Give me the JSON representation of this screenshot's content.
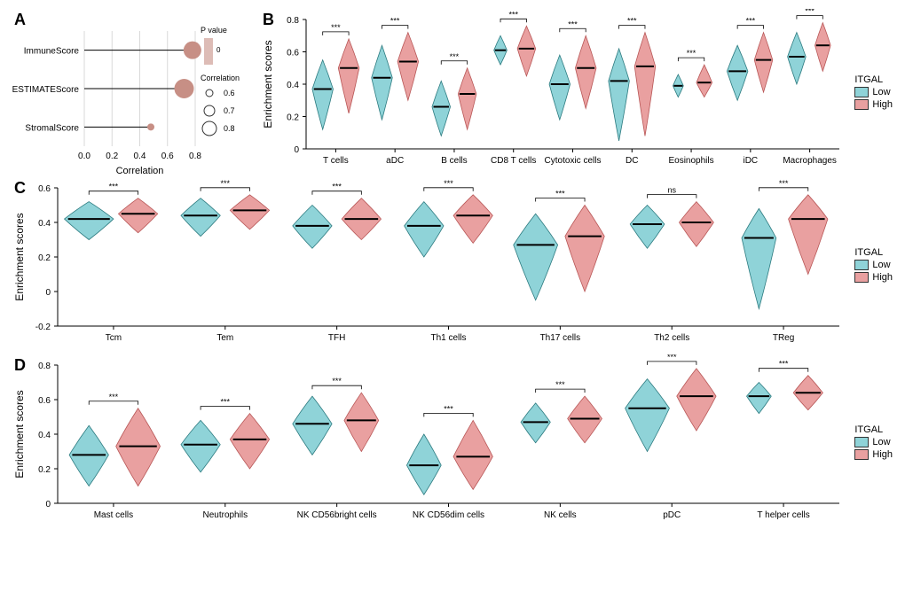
{
  "colors": {
    "low": "#8fd3d8",
    "high": "#e9a0a0",
    "low_stroke": "#2b7a7f",
    "high_stroke": "#b85656",
    "lollipop": "#c78f85",
    "grid": "#d9d9d9",
    "axis": "#000000",
    "bg": "#ffffff"
  },
  "legend": {
    "title": "ITGAL",
    "low": "Low",
    "high": "High"
  },
  "panelA": {
    "label": "A",
    "xlabel": "Correlation",
    "xlim": [
      0.0,
      0.8
    ],
    "xticks": [
      0.0,
      0.2,
      0.4,
      0.6,
      0.8
    ],
    "rows": [
      {
        "name": "ImmuneScore",
        "corr": 0.78,
        "size": 10
      },
      {
        "name": "ESTIMATEScore",
        "corr": 0.72,
        "size": 11
      },
      {
        "name": "StromalScore",
        "corr": 0.48,
        "size": 4
      }
    ],
    "legend_p": "P value",
    "legend_corr": "Correlation",
    "legend_circles": [
      {
        "label": "0.6",
        "r": 4
      },
      {
        "label": "0.7",
        "r": 6
      },
      {
        "label": "0.8",
        "r": 8
      }
    ]
  },
  "panelB": {
    "label": "B",
    "ylabel": "Enrichment scores",
    "ylim": [
      0.0,
      0.8
    ],
    "yticks": [
      0.0,
      0.2,
      0.4,
      0.6,
      0.8
    ],
    "cells": [
      {
        "name": "T cells",
        "low": {
          "m": 0.37,
          "lo": 0.12,
          "hi": 0.55,
          "w": 0.08
        },
        "high": {
          "m": 0.5,
          "lo": 0.22,
          "hi": 0.68,
          "w": 0.08
        },
        "sig": "***"
      },
      {
        "name": "aDC",
        "low": {
          "m": 0.44,
          "lo": 0.18,
          "hi": 0.64,
          "w": 0.08
        },
        "high": {
          "m": 0.54,
          "lo": 0.3,
          "hi": 0.72,
          "w": 0.08
        },
        "sig": "***"
      },
      {
        "name": "B cells",
        "low": {
          "m": 0.26,
          "lo": 0.08,
          "hi": 0.42,
          "w": 0.07
        },
        "high": {
          "m": 0.34,
          "lo": 0.12,
          "hi": 0.5,
          "w": 0.07
        },
        "sig": "***"
      },
      {
        "name": "CD8 T cells",
        "low": {
          "m": 0.61,
          "lo": 0.52,
          "hi": 0.7,
          "w": 0.05
        },
        "high": {
          "m": 0.62,
          "lo": 0.45,
          "hi": 0.76,
          "w": 0.07
        },
        "sig": "***"
      },
      {
        "name": "Cytotoxic cells",
        "low": {
          "m": 0.4,
          "lo": 0.18,
          "hi": 0.58,
          "w": 0.08
        },
        "high": {
          "m": 0.5,
          "lo": 0.25,
          "hi": 0.7,
          "w": 0.08
        },
        "sig": "***"
      },
      {
        "name": "DC",
        "low": {
          "m": 0.42,
          "lo": 0.05,
          "hi": 0.62,
          "w": 0.08
        },
        "high": {
          "m": 0.51,
          "lo": 0.08,
          "hi": 0.72,
          "w": 0.08
        },
        "sig": "***"
      },
      {
        "name": "Eosinophils",
        "low": {
          "m": 0.39,
          "lo": 0.32,
          "hi": 0.46,
          "w": 0.04
        },
        "high": {
          "m": 0.41,
          "lo": 0.32,
          "hi": 0.52,
          "w": 0.06
        },
        "sig": "***"
      },
      {
        "name": "iDC",
        "low": {
          "m": 0.48,
          "lo": 0.3,
          "hi": 0.64,
          "w": 0.08
        },
        "high": {
          "m": 0.55,
          "lo": 0.35,
          "hi": 0.72,
          "w": 0.07
        },
        "sig": "***"
      },
      {
        "name": "Macrophages",
        "low": {
          "m": 0.57,
          "lo": 0.4,
          "hi": 0.72,
          "w": 0.07
        },
        "high": {
          "m": 0.64,
          "lo": 0.48,
          "hi": 0.78,
          "w": 0.06
        },
        "sig": "***"
      }
    ]
  },
  "panelC": {
    "label": "C",
    "ylabel": "Enrichment scores",
    "ylim": [
      -0.2,
      0.6
    ],
    "yticks": [
      -0.2,
      0.0,
      0.2,
      0.4,
      0.6
    ],
    "cells": [
      {
        "name": "Tcm",
        "low": {
          "m": 0.42,
          "lo": 0.3,
          "hi": 0.52,
          "w": 0.1
        },
        "high": {
          "m": 0.45,
          "lo": 0.34,
          "hi": 0.54,
          "w": 0.08
        },
        "sig": "***"
      },
      {
        "name": "Tem",
        "low": {
          "m": 0.44,
          "lo": 0.32,
          "hi": 0.54,
          "w": 0.08
        },
        "high": {
          "m": 0.47,
          "lo": 0.36,
          "hi": 0.56,
          "w": 0.08
        },
        "sig": "***"
      },
      {
        "name": "TFH",
        "low": {
          "m": 0.38,
          "lo": 0.25,
          "hi": 0.5,
          "w": 0.08
        },
        "high": {
          "m": 0.42,
          "lo": 0.3,
          "hi": 0.54,
          "w": 0.08
        },
        "sig": "***"
      },
      {
        "name": "Th1 cells",
        "low": {
          "m": 0.38,
          "lo": 0.2,
          "hi": 0.52,
          "w": 0.08
        },
        "high": {
          "m": 0.44,
          "lo": 0.28,
          "hi": 0.56,
          "w": 0.08
        },
        "sig": "***"
      },
      {
        "name": "Th17 cells",
        "low": {
          "m": 0.27,
          "lo": -0.05,
          "hi": 0.45,
          "w": 0.09
        },
        "high": {
          "m": 0.32,
          "lo": 0.0,
          "hi": 0.5,
          "w": 0.08
        },
        "sig": "***"
      },
      {
        "name": "Th2 cells",
        "low": {
          "m": 0.39,
          "lo": 0.25,
          "hi": 0.5,
          "w": 0.07
        },
        "high": {
          "m": 0.4,
          "lo": 0.26,
          "hi": 0.52,
          "w": 0.07
        },
        "sig": "ns"
      },
      {
        "name": "TReg",
        "low": {
          "m": 0.31,
          "lo": -0.1,
          "hi": 0.48,
          "w": 0.07
        },
        "high": {
          "m": 0.42,
          "lo": 0.1,
          "hi": 0.56,
          "w": 0.08
        },
        "sig": "***"
      }
    ]
  },
  "panelD": {
    "label": "D",
    "ylabel": "Enrichment scores",
    "ylim": [
      0.0,
      0.8
    ],
    "yticks": [
      0.0,
      0.2,
      0.4,
      0.6,
      0.8
    ],
    "cells": [
      {
        "name": "Mast cells",
        "low": {
          "m": 0.28,
          "lo": 0.1,
          "hi": 0.45,
          "w": 0.08
        },
        "high": {
          "m": 0.33,
          "lo": 0.1,
          "hi": 0.55,
          "w": 0.09
        },
        "sig": "***"
      },
      {
        "name": "Neutrophils",
        "low": {
          "m": 0.34,
          "lo": 0.18,
          "hi": 0.48,
          "w": 0.08
        },
        "high": {
          "m": 0.37,
          "lo": 0.2,
          "hi": 0.52,
          "w": 0.08
        },
        "sig": "***"
      },
      {
        "name": "NK CD56bright cells",
        "low": {
          "m": 0.46,
          "lo": 0.28,
          "hi": 0.62,
          "w": 0.08
        },
        "high": {
          "m": 0.48,
          "lo": 0.3,
          "hi": 0.64,
          "w": 0.07
        },
        "sig": "***"
      },
      {
        "name": "NK CD56dim cells",
        "low": {
          "m": 0.22,
          "lo": 0.05,
          "hi": 0.4,
          "w": 0.07
        },
        "high": {
          "m": 0.27,
          "lo": 0.08,
          "hi": 0.48,
          "w": 0.08
        },
        "sig": "***"
      },
      {
        "name": "NK cells",
        "low": {
          "m": 0.47,
          "lo": 0.35,
          "hi": 0.58,
          "w": 0.06
        },
        "high": {
          "m": 0.49,
          "lo": 0.35,
          "hi": 0.62,
          "w": 0.07
        },
        "sig": "***"
      },
      {
        "name": "pDC",
        "low": {
          "m": 0.55,
          "lo": 0.3,
          "hi": 0.72,
          "w": 0.09
        },
        "high": {
          "m": 0.62,
          "lo": 0.42,
          "hi": 0.78,
          "w": 0.08
        },
        "sig": "***"
      },
      {
        "name": "T helper cells",
        "low": {
          "m": 0.62,
          "lo": 0.52,
          "hi": 0.7,
          "w": 0.05
        },
        "high": {
          "m": 0.64,
          "lo": 0.54,
          "hi": 0.74,
          "w": 0.06
        },
        "sig": "***"
      }
    ]
  }
}
